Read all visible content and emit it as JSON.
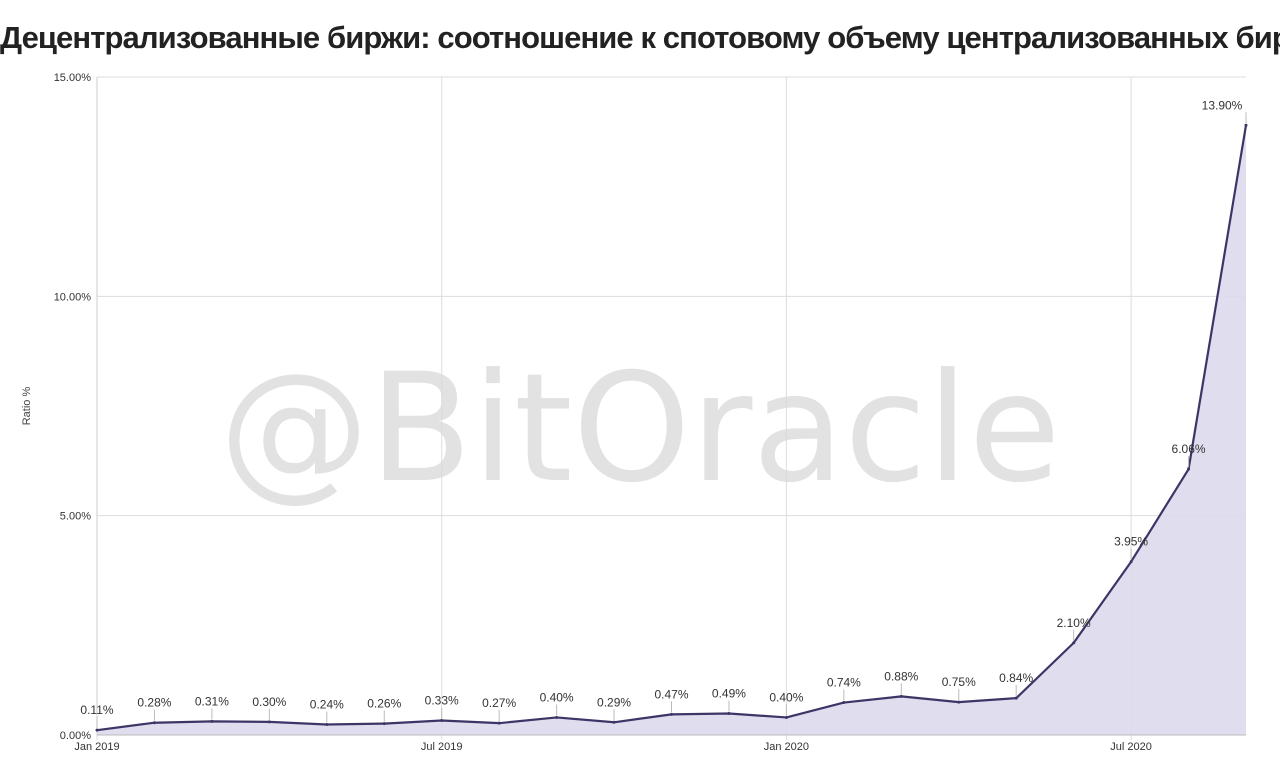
{
  "title": "Децентрализованные биржи: соотношение к спотовому объему централизованных бирж",
  "watermark": "@BitOracle",
  "colors": {
    "line": "#3d3566",
    "area": "#dcd9ec",
    "grid": "#dddddd",
    "text": "#333333"
  },
  "chart_data": {
    "type": "area",
    "title": "Децентрализованные биржи: соотношение к спотовому объему централизованных бирж",
    "ylabel": "Ratio %",
    "xlabel": "",
    "ylim": [
      0,
      15
    ],
    "y_ticks": [
      0,
      5,
      10,
      15
    ],
    "y_tick_labels": [
      "0.00%",
      "5.00%",
      "10.00%",
      "15.00%"
    ],
    "x_ticks": [
      "2019-01",
      "2019-07",
      "2020-01",
      "2020-07"
    ],
    "x_tick_labels": [
      "Jan 2019",
      "Jul 2019",
      "Jan 2020",
      "Jul 2020"
    ],
    "grid": true,
    "x": [
      "2019-01",
      "2019-02",
      "2019-03",
      "2019-04",
      "2019-05",
      "2019-06",
      "2019-07",
      "2019-08",
      "2019-09",
      "2019-10",
      "2019-11",
      "2019-12",
      "2020-01",
      "2020-02",
      "2020-03",
      "2020-04",
      "2020-05",
      "2020-06",
      "2020-07",
      "2020-08",
      "2020-09"
    ],
    "values": [
      0.11,
      0.28,
      0.31,
      0.3,
      0.24,
      0.26,
      0.33,
      0.27,
      0.4,
      0.29,
      0.47,
      0.49,
      0.4,
      0.74,
      0.88,
      0.75,
      0.84,
      2.1,
      3.95,
      6.06,
      13.9
    ],
    "value_labels": [
      "0.11%",
      "0.28%",
      "0.31%",
      "0.30%",
      "0.24%",
      "0.26%",
      "0.33%",
      "0.27%",
      "0.40%",
      "0.29%",
      "0.47%",
      "0.49%",
      "0.40%",
      "0.74%",
      "0.88%",
      "0.75%",
      "0.84%",
      "2.10%",
      "3.95%",
      "6.06%",
      "13.90%"
    ]
  }
}
